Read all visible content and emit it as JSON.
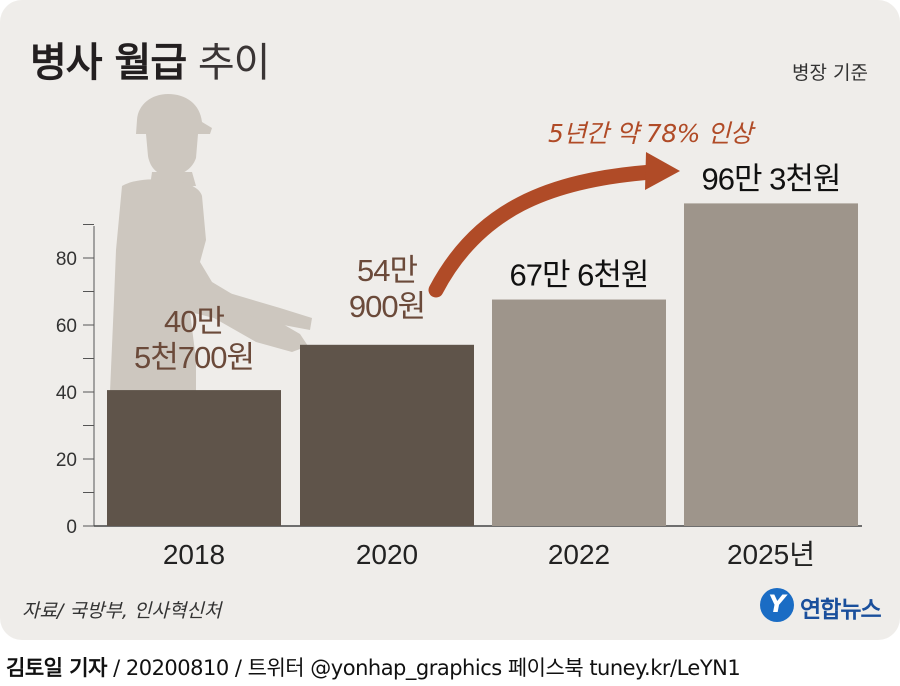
{
  "header": {
    "title_bold": "병사 월급",
    "title_light": "추이",
    "basis_note": "병장 기준"
  },
  "chart_data": {
    "type": "bar",
    "title": "병사 월급 추이",
    "subtitle": "병장 기준",
    "categories": [
      "2018",
      "2020",
      "2022",
      "2025년"
    ],
    "values": [
      40.57,
      54.09,
      67.6,
      96.3
    ],
    "value_labels": [
      [
        "40만",
        "5천700원"
      ],
      [
        "54만",
        "900원"
      ],
      [
        "67만 6천원"
      ],
      [
        "96만 3천원"
      ]
    ],
    "bar_colors": [
      "#5f544a",
      "#5f544a",
      "#9e958b",
      "#9e958b"
    ],
    "label_colors": [
      "#6b4a3a",
      "#6b4a3a",
      "#111111",
      "#111111"
    ],
    "ylim": [
      0,
      100
    ],
    "yticks": [
      0,
      20,
      40,
      60,
      80
    ],
    "grid": false,
    "annotation": "5년간 약 78% 인상",
    "annotation_color": "#b04b27"
  },
  "footer": {
    "source": "자료/ 국방부, 인사혁신처",
    "agency": "연합뉴스",
    "agency_mark": "Y",
    "author": "김토일 기자",
    "credits": " / 20200810 / 트위터 @yonhap_graphics  페이스북 tuney.kr/LeYN1"
  }
}
